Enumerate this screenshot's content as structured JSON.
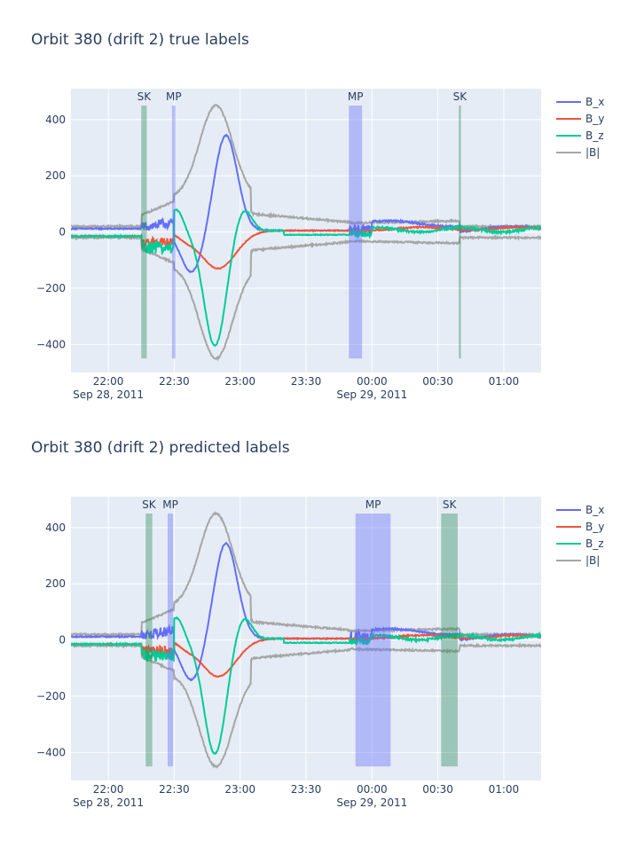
{
  "charts": {
    "chart_data": [
      {
        "type": "line",
        "title": "Orbit 380 (drift 2) true labels",
        "xlabel": "",
        "ylabel": "",
        "ylim": [
          -500,
          510
        ],
        "yticks": [
          -400,
          -200,
          0,
          200,
          400
        ],
        "yticklabels": [
          "−400",
          "−200",
          "0",
          "200",
          "400"
        ],
        "xlim_minutes_from_22_00": [
          -17,
          80
        ],
        "xticks": [
          {
            "t": 0,
            "label": "22:00",
            "sublabel": "Sep 28, 2011"
          },
          {
            "t": 30,
            "label": "22:30",
            "sublabel": ""
          },
          {
            "t": 60,
            "label": "23:00",
            "sublabel": ""
          },
          {
            "t": 90,
            "label": "23:30",
            "sublabel": ""
          },
          {
            "t": 120,
            "label": "00:00",
            "sublabel": "Sep 29, 2011"
          },
          {
            "t": 150,
            "label": "00:30",
            "sublabel": ""
          },
          {
            "t": 180,
            "label": "01:00",
            "sublabel": ""
          }
        ],
        "grid": true,
        "legend": "right",
        "series": [
          {
            "name": "B_x",
            "color": "#636efa"
          },
          {
            "name": "B_y",
            "color": "#ef553b"
          },
          {
            "name": "B_z",
            "color": "#00cc96"
          },
          {
            "name": "|B|",
            "color": "#a6a6a6"
          }
        ],
        "regions": [
          {
            "label": "SK",
            "kind": "shock",
            "start": 15.0,
            "end": 17.5
          },
          {
            "label": "MP",
            "kind": "magnetopause",
            "start": 29.0,
            "end": 30.5
          },
          {
            "label": "MP",
            "kind": "magnetopause",
            "start": 109.5,
            "end": 115.5
          },
          {
            "label": "SK",
            "kind": "shock",
            "start": 159.5,
            "end": 160.5
          }
        ]
      },
      {
        "type": "line",
        "title": "Orbit 380 (drift 2) predicted labels",
        "xlabel": "",
        "ylabel": "",
        "ylim": [
          -500,
          510
        ],
        "yticks": [
          -400,
          -200,
          0,
          200,
          400
        ],
        "yticklabels": [
          "−400",
          "−200",
          "0",
          "200",
          "400"
        ],
        "xlim_minutes_from_22_00": [
          -17,
          80
        ],
        "xticks": [
          {
            "t": 0,
            "label": "22:00",
            "sublabel": "Sep 28, 2011"
          },
          {
            "t": 30,
            "label": "22:30",
            "sublabel": ""
          },
          {
            "t": 60,
            "label": "23:00",
            "sublabel": ""
          },
          {
            "t": 90,
            "label": "23:30",
            "sublabel": ""
          },
          {
            "t": 120,
            "label": "00:00",
            "sublabel": "Sep 29, 2011"
          },
          {
            "t": 150,
            "label": "00:30",
            "sublabel": ""
          },
          {
            "t": 180,
            "label": "01:00",
            "sublabel": ""
          }
        ],
        "grid": true,
        "legend": "right",
        "series": [
          {
            "name": "B_x",
            "color": "#636efa"
          },
          {
            "name": "B_y",
            "color": "#ef553b"
          },
          {
            "name": "B_z",
            "color": "#00cc96"
          },
          {
            "name": "|B|",
            "color": "#a6a6a6"
          }
        ],
        "regions": [
          {
            "label": "SK",
            "kind": "shock",
            "start": 17.0,
            "end": 20.0
          },
          {
            "label": "MP",
            "kind": "magnetopause",
            "start": 27.0,
            "end": 29.5
          },
          {
            "label": "MP",
            "kind": "magnetopause",
            "start": 112.5,
            "end": 128.5
          },
          {
            "label": "SK",
            "kind": "shock",
            "start": 151.5,
            "end": 159.0
          }
        ]
      }
    ]
  },
  "colors": {
    "plot_bg": "#e5ecf6",
    "grid": "#ffffff",
    "text": "#2a3f5f",
    "shock_fill": "#2e8b57",
    "magnetopause_fill": "#636efa"
  },
  "signal_model": {
    "note": "Curves are synthesized shapes: Bx peaks ~330 near 22:50, By min ~-130 near 22:48, Bz min ~-400 near 22:47, |B| envelope peaks ~450."
  }
}
